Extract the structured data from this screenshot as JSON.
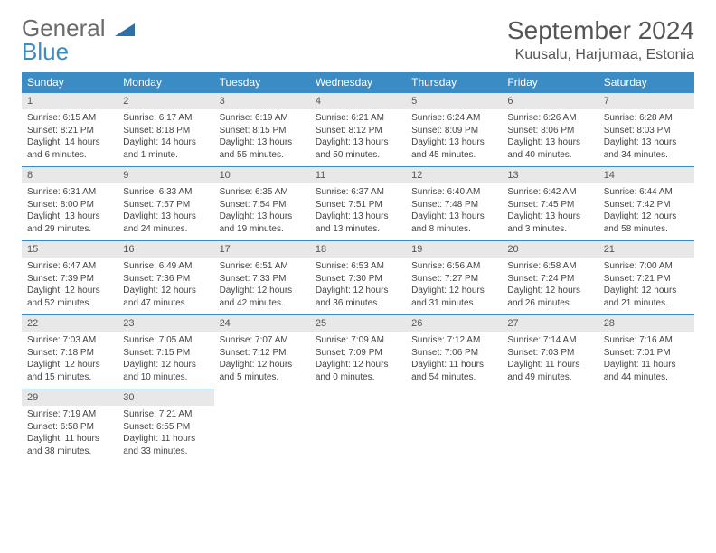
{
  "logo": {
    "line1": "General",
    "line2": "Blue"
  },
  "title": "September 2024",
  "location": "Kuusalu, Harjumaa, Estonia",
  "colors": {
    "header_bg": "#3b8bc4",
    "daynum_bg": "#e8e8e8",
    "text": "#444444",
    "title_text": "#555555"
  },
  "day_names": [
    "Sunday",
    "Monday",
    "Tuesday",
    "Wednesday",
    "Thursday",
    "Friday",
    "Saturday"
  ],
  "weeks": [
    [
      {
        "n": "1",
        "sr": "6:15 AM",
        "ss": "8:21 PM",
        "dl": "14 hours and 6 minutes."
      },
      {
        "n": "2",
        "sr": "6:17 AM",
        "ss": "8:18 PM",
        "dl": "14 hours and 1 minute."
      },
      {
        "n": "3",
        "sr": "6:19 AM",
        "ss": "8:15 PM",
        "dl": "13 hours and 55 minutes."
      },
      {
        "n": "4",
        "sr": "6:21 AM",
        "ss": "8:12 PM",
        "dl": "13 hours and 50 minutes."
      },
      {
        "n": "5",
        "sr": "6:24 AM",
        "ss": "8:09 PM",
        "dl": "13 hours and 45 minutes."
      },
      {
        "n": "6",
        "sr": "6:26 AM",
        "ss": "8:06 PM",
        "dl": "13 hours and 40 minutes."
      },
      {
        "n": "7",
        "sr": "6:28 AM",
        "ss": "8:03 PM",
        "dl": "13 hours and 34 minutes."
      }
    ],
    [
      {
        "n": "8",
        "sr": "6:31 AM",
        "ss": "8:00 PM",
        "dl": "13 hours and 29 minutes."
      },
      {
        "n": "9",
        "sr": "6:33 AM",
        "ss": "7:57 PM",
        "dl": "13 hours and 24 minutes."
      },
      {
        "n": "10",
        "sr": "6:35 AM",
        "ss": "7:54 PM",
        "dl": "13 hours and 19 minutes."
      },
      {
        "n": "11",
        "sr": "6:37 AM",
        "ss": "7:51 PM",
        "dl": "13 hours and 13 minutes."
      },
      {
        "n": "12",
        "sr": "6:40 AM",
        "ss": "7:48 PM",
        "dl": "13 hours and 8 minutes."
      },
      {
        "n": "13",
        "sr": "6:42 AM",
        "ss": "7:45 PM",
        "dl": "13 hours and 3 minutes."
      },
      {
        "n": "14",
        "sr": "6:44 AM",
        "ss": "7:42 PM",
        "dl": "12 hours and 58 minutes."
      }
    ],
    [
      {
        "n": "15",
        "sr": "6:47 AM",
        "ss": "7:39 PM",
        "dl": "12 hours and 52 minutes."
      },
      {
        "n": "16",
        "sr": "6:49 AM",
        "ss": "7:36 PM",
        "dl": "12 hours and 47 minutes."
      },
      {
        "n": "17",
        "sr": "6:51 AM",
        "ss": "7:33 PM",
        "dl": "12 hours and 42 minutes."
      },
      {
        "n": "18",
        "sr": "6:53 AM",
        "ss": "7:30 PM",
        "dl": "12 hours and 36 minutes."
      },
      {
        "n": "19",
        "sr": "6:56 AM",
        "ss": "7:27 PM",
        "dl": "12 hours and 31 minutes."
      },
      {
        "n": "20",
        "sr": "6:58 AM",
        "ss": "7:24 PM",
        "dl": "12 hours and 26 minutes."
      },
      {
        "n": "21",
        "sr": "7:00 AM",
        "ss": "7:21 PM",
        "dl": "12 hours and 21 minutes."
      }
    ],
    [
      {
        "n": "22",
        "sr": "7:03 AM",
        "ss": "7:18 PM",
        "dl": "12 hours and 15 minutes."
      },
      {
        "n": "23",
        "sr": "7:05 AM",
        "ss": "7:15 PM",
        "dl": "12 hours and 10 minutes."
      },
      {
        "n": "24",
        "sr": "7:07 AM",
        "ss": "7:12 PM",
        "dl": "12 hours and 5 minutes."
      },
      {
        "n": "25",
        "sr": "7:09 AM",
        "ss": "7:09 PM",
        "dl": "12 hours and 0 minutes."
      },
      {
        "n": "26",
        "sr": "7:12 AM",
        "ss": "7:06 PM",
        "dl": "11 hours and 54 minutes."
      },
      {
        "n": "27",
        "sr": "7:14 AM",
        "ss": "7:03 PM",
        "dl": "11 hours and 49 minutes."
      },
      {
        "n": "28",
        "sr": "7:16 AM",
        "ss": "7:01 PM",
        "dl": "11 hours and 44 minutes."
      }
    ],
    [
      {
        "n": "29",
        "sr": "7:19 AM",
        "ss": "6:58 PM",
        "dl": "11 hours and 38 minutes."
      },
      {
        "n": "30",
        "sr": "7:21 AM",
        "ss": "6:55 PM",
        "dl": "11 hours and 33 minutes."
      },
      null,
      null,
      null,
      null,
      null
    ]
  ],
  "labels": {
    "sunrise": "Sunrise: ",
    "sunset": "Sunset: ",
    "daylight": "Daylight: "
  }
}
